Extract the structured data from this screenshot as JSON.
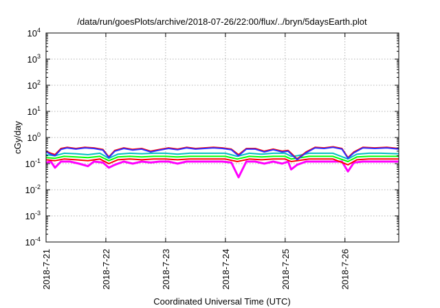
{
  "chart_data": {
    "type": "line",
    "title": "/data/run/goesPlots/archive/2018-07-26/22:00/flux/../bryn/5daysEarth.plot",
    "xlabel": "Coordinated Universal Time (UTC)",
    "ylabel": "cGy/day",
    "yscale": "log",
    "ylim": [
      0.0001,
      10000
    ],
    "y_ticks": [
      {
        "value": 0.0001,
        "base": "10",
        "exp": "-4"
      },
      {
        "value": 0.001,
        "base": "10",
        "exp": "-3"
      },
      {
        "value": 0.01,
        "base": "10",
        "exp": "-2"
      },
      {
        "value": 0.1,
        "base": "10",
        "exp": "-1"
      },
      {
        "value": 1,
        "base": "10",
        "exp": "0"
      },
      {
        "value": 10,
        "base": "10",
        "exp": "1"
      },
      {
        "value": 100,
        "base": "10",
        "exp": "2"
      },
      {
        "value": 1000,
        "base": "10",
        "exp": "3"
      },
      {
        "value": 10000,
        "base": "10",
        "exp": "4"
      }
    ],
    "xlim": [
      "2018-07-21",
      "2018-07-26 22:00"
    ],
    "x_ticks": [
      "2018-7-21",
      "2018-7-22",
      "2018-7-23",
      "2018-7-24",
      "2018-7-25",
      "2018-7-26"
    ],
    "grid": true,
    "legend": "none",
    "series": [
      {
        "color": "#ff00ff",
        "values": [
          [
            0,
            0.11
          ],
          [
            0.08,
            0.12
          ],
          [
            0.15,
            0.07
          ],
          [
            0.25,
            0.12
          ],
          [
            0.4,
            0.12
          ],
          [
            0.55,
            0.1
          ],
          [
            0.7,
            0.08
          ],
          [
            0.8,
            0.12
          ],
          [
            0.95,
            0.11
          ],
          [
            1.05,
            0.07
          ],
          [
            1.15,
            0.09
          ],
          [
            1.3,
            0.12
          ],
          [
            1.45,
            0.1
          ],
          [
            1.6,
            0.12
          ],
          [
            1.75,
            0.11
          ],
          [
            1.9,
            0.12
          ],
          [
            2.05,
            0.12
          ],
          [
            2.2,
            0.1
          ],
          [
            2.35,
            0.12
          ],
          [
            2.5,
            0.12
          ],
          [
            2.65,
            0.12
          ],
          [
            2.8,
            0.12
          ],
          [
            2.95,
            0.12
          ],
          [
            3.1,
            0.11
          ],
          [
            3.22,
            0.03
          ],
          [
            3.35,
            0.12
          ],
          [
            3.5,
            0.12
          ],
          [
            3.65,
            0.1
          ],
          [
            3.8,
            0.12
          ],
          [
            3.95,
            0.1
          ],
          [
            4.05,
            0.12
          ],
          [
            4.1,
            0.06
          ],
          [
            4.2,
            0.09
          ],
          [
            4.35,
            0.12
          ],
          [
            4.5,
            0.12
          ],
          [
            4.65,
            0.12
          ],
          [
            4.8,
            0.12
          ],
          [
            4.95,
            0.12
          ],
          [
            5.05,
            0.05
          ],
          [
            5.15,
            0.11
          ],
          [
            5.3,
            0.12
          ],
          [
            5.5,
            0.12
          ],
          [
            5.7,
            0.12
          ],
          [
            5.9,
            0.12
          ]
        ]
      },
      {
        "color": "#ff0000",
        "values": [
          [
            0,
            0.14
          ],
          [
            0.15,
            0.13
          ],
          [
            0.3,
            0.15
          ],
          [
            0.5,
            0.14
          ],
          [
            0.7,
            0.13
          ],
          [
            0.9,
            0.15
          ],
          [
            1.05,
            0.1
          ],
          [
            1.2,
            0.14
          ],
          [
            1.4,
            0.15
          ],
          [
            1.6,
            0.14
          ],
          [
            1.8,
            0.15
          ],
          [
            2.0,
            0.15
          ],
          [
            2.2,
            0.14
          ],
          [
            2.4,
            0.15
          ],
          [
            2.6,
            0.15
          ],
          [
            2.8,
            0.15
          ],
          [
            3.0,
            0.15
          ],
          [
            3.2,
            0.12
          ],
          [
            3.4,
            0.15
          ],
          [
            3.6,
            0.14
          ],
          [
            3.8,
            0.15
          ],
          [
            4.0,
            0.15
          ],
          [
            4.1,
            0.12
          ],
          [
            4.2,
            0.13
          ],
          [
            4.4,
            0.15
          ],
          [
            4.6,
            0.15
          ],
          [
            4.8,
            0.15
          ],
          [
            5.05,
            0.09
          ],
          [
            5.2,
            0.14
          ],
          [
            5.4,
            0.15
          ],
          [
            5.6,
            0.15
          ],
          [
            5.9,
            0.15
          ]
        ]
      },
      {
        "color": "#00ff00",
        "values": [
          [
            0,
            0.17
          ],
          [
            0.15,
            0.16
          ],
          [
            0.3,
            0.19
          ],
          [
            0.5,
            0.18
          ],
          [
            0.7,
            0.17
          ],
          [
            0.9,
            0.19
          ],
          [
            1.05,
            0.13
          ],
          [
            1.2,
            0.18
          ],
          [
            1.4,
            0.19
          ],
          [
            1.6,
            0.18
          ],
          [
            1.8,
            0.19
          ],
          [
            2.0,
            0.19
          ],
          [
            2.2,
            0.18
          ],
          [
            2.4,
            0.19
          ],
          [
            2.6,
            0.19
          ],
          [
            2.8,
            0.19
          ],
          [
            3.0,
            0.19
          ],
          [
            3.2,
            0.15
          ],
          [
            3.4,
            0.19
          ],
          [
            3.6,
            0.18
          ],
          [
            3.8,
            0.19
          ],
          [
            4.0,
            0.19
          ],
          [
            4.1,
            0.15
          ],
          [
            4.2,
            0.16
          ],
          [
            4.4,
            0.19
          ],
          [
            4.6,
            0.19
          ],
          [
            4.8,
            0.19
          ],
          [
            5.05,
            0.12
          ],
          [
            5.2,
            0.18
          ],
          [
            5.4,
            0.19
          ],
          [
            5.6,
            0.19
          ],
          [
            5.9,
            0.19
          ]
        ]
      },
      {
        "color": "#00c0c0",
        "values": [
          [
            0,
            0.22
          ],
          [
            0.15,
            0.2
          ],
          [
            0.3,
            0.25
          ],
          [
            0.5,
            0.24
          ],
          [
            0.7,
            0.22
          ],
          [
            0.9,
            0.25
          ],
          [
            1.05,
            0.16
          ],
          [
            1.2,
            0.23
          ],
          [
            1.4,
            0.25
          ],
          [
            1.6,
            0.24
          ],
          [
            1.8,
            0.25
          ],
          [
            2.0,
            0.25
          ],
          [
            2.2,
            0.23
          ],
          [
            2.4,
            0.25
          ],
          [
            2.6,
            0.25
          ],
          [
            2.8,
            0.25
          ],
          [
            3.0,
            0.25
          ],
          [
            3.2,
            0.19
          ],
          [
            3.4,
            0.25
          ],
          [
            3.6,
            0.23
          ],
          [
            3.8,
            0.25
          ],
          [
            4.0,
            0.25
          ],
          [
            4.1,
            0.19
          ],
          [
            4.2,
            0.2
          ],
          [
            4.4,
            0.25
          ],
          [
            4.6,
            0.25
          ],
          [
            4.8,
            0.25
          ],
          [
            5.05,
            0.15
          ],
          [
            5.2,
            0.23
          ],
          [
            5.4,
            0.25
          ],
          [
            5.6,
            0.25
          ],
          [
            5.9,
            0.24
          ]
        ]
      },
      {
        "color": "#ff0000",
        "values": [
          [
            0,
            0.3
          ],
          [
            0.08,
            0.25
          ],
          [
            0.15,
            0.22
          ],
          [
            0.25,
            0.38
          ],
          [
            0.35,
            0.42
          ],
          [
            0.5,
            0.38
          ],
          [
            0.65,
            0.42
          ],
          [
            0.8,
            0.4
          ],
          [
            0.95,
            0.35
          ],
          [
            1.05,
            0.18
          ],
          [
            1.15,
            0.32
          ],
          [
            1.3,
            0.4
          ],
          [
            1.45,
            0.35
          ],
          [
            1.6,
            0.38
          ],
          [
            1.75,
            0.3
          ],
          [
            1.9,
            0.35
          ],
          [
            2.05,
            0.4
          ],
          [
            2.2,
            0.36
          ],
          [
            2.35,
            0.42
          ],
          [
            2.5,
            0.38
          ],
          [
            2.65,
            0.4
          ],
          [
            2.8,
            0.42
          ],
          [
            2.95,
            0.4
          ],
          [
            3.1,
            0.36
          ],
          [
            3.22,
            0.22
          ],
          [
            3.35,
            0.38
          ],
          [
            3.5,
            0.38
          ],
          [
            3.65,
            0.3
          ],
          [
            3.8,
            0.36
          ],
          [
            3.95,
            0.3
          ],
          [
            4.05,
            0.32
          ],
          [
            4.1,
            0.25
          ],
          [
            4.2,
            0.15
          ],
          [
            4.35,
            0.28
          ],
          [
            4.5,
            0.42
          ],
          [
            4.65,
            0.4
          ],
          [
            4.8,
            0.44
          ],
          [
            4.95,
            0.38
          ],
          [
            5.05,
            0.17
          ],
          [
            5.15,
            0.28
          ],
          [
            5.3,
            0.42
          ],
          [
            5.5,
            0.4
          ],
          [
            5.7,
            0.42
          ],
          [
            5.9,
            0.38
          ]
        ]
      },
      {
        "color": "#3030ff",
        "values": [
          [
            0,
            0.28
          ],
          [
            0.08,
            0.23
          ],
          [
            0.15,
            0.2
          ],
          [
            0.25,
            0.35
          ],
          [
            0.35,
            0.4
          ],
          [
            0.5,
            0.36
          ],
          [
            0.65,
            0.4
          ],
          [
            0.8,
            0.38
          ],
          [
            0.95,
            0.33
          ],
          [
            1.05,
            0.17
          ],
          [
            1.15,
            0.3
          ],
          [
            1.3,
            0.38
          ],
          [
            1.45,
            0.33
          ],
          [
            1.6,
            0.36
          ],
          [
            1.75,
            0.28
          ],
          [
            1.9,
            0.33
          ],
          [
            2.05,
            0.38
          ],
          [
            2.2,
            0.34
          ],
          [
            2.35,
            0.4
          ],
          [
            2.5,
            0.36
          ],
          [
            2.65,
            0.38
          ],
          [
            2.8,
            0.4
          ],
          [
            2.95,
            0.38
          ],
          [
            3.1,
            0.34
          ],
          [
            3.22,
            0.2
          ],
          [
            3.35,
            0.36
          ],
          [
            3.5,
            0.36
          ],
          [
            3.65,
            0.28
          ],
          [
            3.8,
            0.34
          ],
          [
            3.95,
            0.28
          ],
          [
            4.05,
            0.3
          ],
          [
            4.1,
            0.23
          ],
          [
            4.2,
            0.14
          ],
          [
            4.35,
            0.26
          ],
          [
            4.5,
            0.4
          ],
          [
            4.65,
            0.38
          ],
          [
            4.8,
            0.42
          ],
          [
            4.95,
            0.36
          ],
          [
            5.05,
            0.16
          ],
          [
            5.15,
            0.26
          ],
          [
            5.3,
            0.4
          ],
          [
            5.5,
            0.38
          ],
          [
            5.7,
            0.4
          ],
          [
            5.9,
            0.36
          ]
        ]
      }
    ]
  }
}
